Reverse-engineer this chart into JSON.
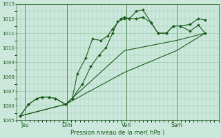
{
  "bg_color": "#cce8dd",
  "grid_color": "#99ccaa",
  "line_color": "#1a5c1a",
  "xlabel": "Pression niveau de la mer( hPa )",
  "ylim": [
    1005,
    1013
  ],
  "yticks": [
    1005,
    1006,
    1007,
    1008,
    1009,
    1010,
    1011,
    1012,
    1013
  ],
  "day_labels": [
    "Jeu",
    "Dim",
    "Ven",
    "Sam"
  ],
  "day_positions": [
    0.5,
    3.0,
    6.5,
    9.5
  ],
  "xlim": [
    0,
    12
  ],
  "series1_x": [
    0.2,
    0.7,
    1.2,
    1.5,
    1.9,
    2.3,
    2.9,
    3.3,
    3.6,
    4.1,
    4.5,
    5.0,
    5.4,
    5.7,
    6.2,
    6.4,
    6.7,
    7.1,
    7.5,
    8.0,
    8.4,
    8.9,
    9.3,
    9.7,
    10.3,
    10.8,
    11.2
  ],
  "series1_y": [
    1005.3,
    1006.1,
    1006.5,
    1006.6,
    1006.6,
    1006.5,
    1006.1,
    1006.5,
    1008.2,
    1009.3,
    1010.6,
    1010.5,
    1010.8,
    1011.3,
    1012.0,
    1012.1,
    1012.0,
    1012.5,
    1012.6,
    1011.7,
    1011.0,
    1011.0,
    1011.5,
    1011.5,
    1011.15,
    1011.55,
    1011.0
  ],
  "series2_x": [
    0.2,
    0.7,
    1.2,
    1.5,
    1.9,
    2.3,
    2.9,
    3.3,
    3.9,
    4.4,
    4.9,
    5.3,
    5.7,
    6.0,
    6.4,
    6.7,
    7.1,
    7.5,
    8.0,
    8.4,
    8.9,
    9.3,
    9.7,
    10.3,
    10.8,
    11.2
  ],
  "series2_y": [
    1005.3,
    1006.1,
    1006.5,
    1006.6,
    1006.6,
    1006.5,
    1006.1,
    1006.5,
    1007.5,
    1008.7,
    1009.5,
    1010.0,
    1011.0,
    1011.8,
    1012.0,
    1012.0,
    1012.0,
    1012.1,
    1011.7,
    1011.0,
    1011.0,
    1011.5,
    1011.5,
    1011.6,
    1012.0,
    1011.9
  ],
  "series3_x": [
    0.2,
    2.9,
    6.4,
    9.5,
    11.2
  ],
  "series3_y": [
    1005.3,
    1006.1,
    1008.3,
    1009.8,
    1011.0
  ],
  "series4_x": [
    0.2,
    2.9,
    6.4,
    9.5,
    11.2
  ],
  "series4_y": [
    1005.3,
    1006.1,
    1009.8,
    1010.5,
    1011.0
  ]
}
